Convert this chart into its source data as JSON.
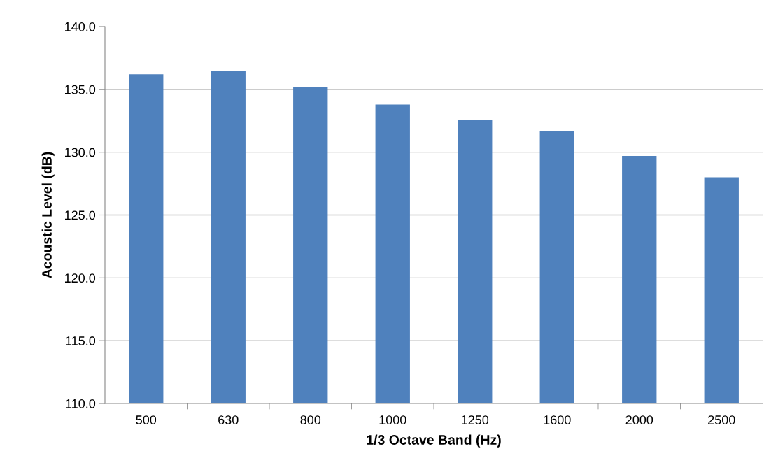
{
  "chart_data": {
    "type": "bar",
    "xlabel": "1/3 Octave Band (Hz)",
    "ylabel": "Acoustic Level (dB)",
    "categories": [
      "500",
      "630",
      "800",
      "1000",
      "1250",
      "1600",
      "2000",
      "2500"
    ],
    "values": [
      136.2,
      136.5,
      135.2,
      133.8,
      132.6,
      131.7,
      129.7,
      128.0
    ],
    "color": "#4f81bd",
    "ylim": [
      110,
      140
    ],
    "yticks": [
      {
        "value": 110,
        "label": "110.0"
      },
      {
        "value": 115,
        "label": "115.0"
      },
      {
        "value": 120,
        "label": "120.0"
      },
      {
        "value": 125,
        "label": "125.0"
      },
      {
        "value": 130,
        "label": "130.0"
      },
      {
        "value": 135,
        "label": "135.0"
      },
      {
        "value": 140,
        "label": "140.0"
      }
    ],
    "grid": "y",
    "legend": false
  }
}
